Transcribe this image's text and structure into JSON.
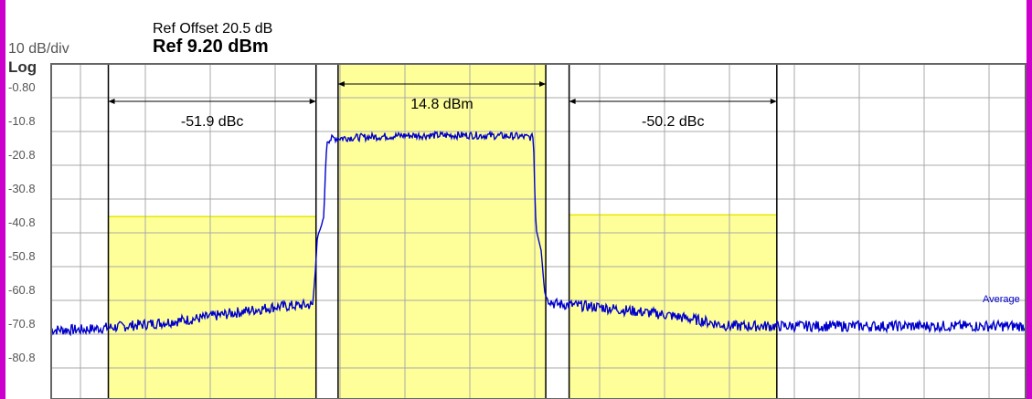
{
  "header": {
    "ref_offset": "Ref Offset 20.5 dB",
    "ref_level": "Ref 9.20 dBm",
    "scale": "10 dB/div",
    "scale_type": "Log"
  },
  "colors": {
    "frame_accent": "#cc00cc",
    "trace": "#0000cc",
    "band_fill": "#ffff99",
    "band_top": "#e6e600",
    "grid": "#a9a9a9",
    "marker_text": "#000000",
    "trace_label": "#0000cc"
  },
  "chart_data": {
    "type": "line",
    "title": "",
    "xlabel": "",
    "ylabel": "",
    "y_unit": "dBm",
    "y_tick_labels": [
      "-0.80",
      "-10.8",
      "-20.8",
      "-30.8",
      "-40.8",
      "-50.8",
      "-60.8",
      "-70.8",
      "-80.8"
    ],
    "ylim": [
      -88.8,
      9.2
    ],
    "x_divisions": 10,
    "grid": true,
    "trace_label": "Average",
    "series": [
      {
        "name": "Average",
        "trace_x": [
          0,
          0.6,
          1.2,
          1.8,
          2.4,
          3.0,
          3.47,
          3.58,
          3.62,
          3.65,
          3.7,
          3.75,
          3.78,
          3.8,
          3.9,
          4.2,
          5.0,
          6.0,
          6.7,
          6.98,
          7.0,
          7.02,
          7.05,
          7.1,
          7.15,
          7.18,
          7.3,
          8.0,
          9.0,
          9.5,
          10.0
        ],
        "trace_y": [
          -69.5,
          -68.6,
          -67.5,
          -66.2,
          -64.4,
          -62.7,
          -62.2,
          -62.0,
          -52.0,
          -42.0,
          -39.6,
          -36.0,
          -20.0,
          -13.4,
          -12.8,
          -12.6,
          -12.0,
          -11.9,
          -12.2,
          -12.6,
          -28.0,
          -39.5,
          -42.0,
          -46.0,
          -58.0,
          -60.0,
          -61.8,
          -62.8,
          -65.0,
          -66.6,
          -68.4
        ]
      }
    ],
    "measurement_bands": [
      {
        "start_div": 0.43,
        "end_div": 3.63,
        "top_db": -36.0,
        "value_label": "-51.9 dBc"
      },
      {
        "start_div": 3.97,
        "end_div": 7.17,
        "top_db": 9.2,
        "value_label": "14.8 dBm"
      },
      {
        "start_div": 7.53,
        "end_div": 10.73,
        "top_db": -35.5,
        "value_label": "-50.2 dBc"
      }
    ]
  }
}
